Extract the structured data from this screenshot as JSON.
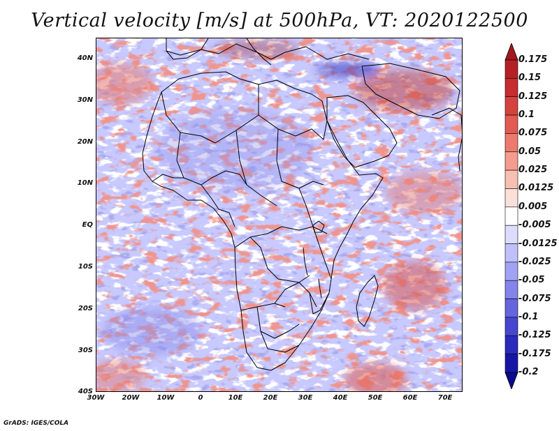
{
  "title": "Vertical velocity [m/s] at 500hPa, VT: 2020122500",
  "footer": "GrADS: IGES/COLA",
  "map": {
    "region": "Africa",
    "lat_range": [
      -40,
      45
    ],
    "lon_range": [
      -30,
      75
    ],
    "lat_labels": [
      "40N",
      "30N",
      "20N",
      "10N",
      "EQ",
      "10S",
      "20S",
      "30S",
      "40S"
    ],
    "lon_labels": [
      "30W",
      "20W",
      "10W",
      "0",
      "10E",
      "20E",
      "30E",
      "40E",
      "50E",
      "60E",
      "70E"
    ]
  },
  "colorbar": {
    "labels": [
      "0.175",
      "0.15",
      "0.125",
      "0.1",
      "0.075",
      "0.05",
      "0.025",
      "0.0125",
      "0.005",
      "-0.005",
      "-0.0125",
      "-0.025",
      "-0.05",
      "-0.075",
      "-0.1",
      "-0.125",
      "-0.175",
      "-0.2"
    ],
    "colors": [
      "#a3171f",
      "#b52025",
      "#c62c30",
      "#d5413d",
      "#e25a53",
      "#ec7a6e",
      "#f49c8d",
      "#f8bfb3",
      "#fbe0da",
      "#ffffff",
      "#dcdcfc",
      "#bfc0fa",
      "#a2a2f4",
      "#8484ea",
      "#6565de",
      "#4646cf",
      "#2a2abd",
      "#1616a6",
      "#0a0a8f"
    ]
  },
  "colors": {
    "ocean_base": "#c7c9ff",
    "land_base": "#c9c9f7",
    "positive": "#e06a60",
    "negative": "#6c6ce0",
    "boundary": "#000000"
  }
}
